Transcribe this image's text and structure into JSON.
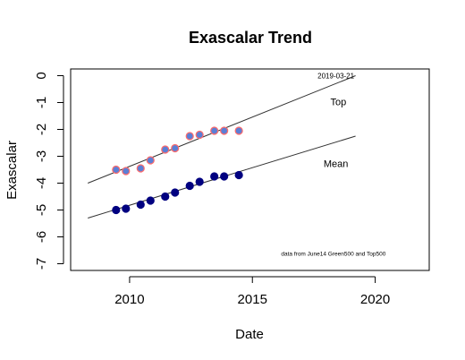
{
  "chart_data": {
    "type": "scatter",
    "title": "Exascalar Trend",
    "xlabel": "Date",
    "ylabel": "Exascalar",
    "xlim": [
      2007.6,
      2022.2
    ],
    "ylim": [
      -7.25,
      0.25
    ],
    "x_ticks": [
      2010,
      2015,
      2020
    ],
    "y_ticks": [
      0,
      -1,
      -2,
      -3,
      -4,
      -5,
      -6,
      -7
    ],
    "series": [
      {
        "name": "Top",
        "point_fill": "#5b7fd6",
        "point_edge": "#ff6b6b",
        "points": [
          [
            2009.45,
            -3.5
          ],
          [
            2009.85,
            -3.55
          ],
          [
            2010.45,
            -3.45
          ],
          [
            2010.85,
            -3.15
          ],
          [
            2011.45,
            -2.75
          ],
          [
            2011.85,
            -2.7
          ],
          [
            2012.45,
            -2.25
          ],
          [
            2012.85,
            -2.2
          ],
          [
            2013.45,
            -2.05
          ],
          [
            2013.85,
            -2.05
          ],
          [
            2014.45,
            -2.05
          ]
        ],
        "trend": {
          "x": [
            2008.3,
            2019.2
          ],
          "y": [
            -4.0,
            0.0
          ]
        }
      },
      {
        "name": "Mean",
        "point_fill": "#000080",
        "point_edge": "#000080",
        "points": [
          [
            2009.45,
            -5.0
          ],
          [
            2009.85,
            -4.95
          ],
          [
            2010.45,
            -4.8
          ],
          [
            2010.85,
            -4.65
          ],
          [
            2011.45,
            -4.5
          ],
          [
            2011.85,
            -4.35
          ],
          [
            2012.45,
            -4.1
          ],
          [
            2012.85,
            -3.95
          ],
          [
            2013.45,
            -3.75
          ],
          [
            2013.85,
            -3.75
          ],
          [
            2014.45,
            -3.7
          ]
        ],
        "trend": {
          "x": [
            2008.3,
            2019.2
          ],
          "y": [
            -5.3,
            -2.25
          ]
        }
      }
    ],
    "annotations": [
      {
        "text": "2019-03-21",
        "x": 2018.4,
        "y": 0.0,
        "size": "small"
      },
      {
        "text": "Top",
        "x": 2018.5,
        "y": -1.0,
        "size": "medium"
      },
      {
        "text": "Mean",
        "x": 2018.4,
        "y": -3.3,
        "size": "medium"
      },
      {
        "text": "data from June14 Green500 and Top500",
        "x": 2018.3,
        "y": -6.6,
        "size": "tiny"
      }
    ]
  }
}
